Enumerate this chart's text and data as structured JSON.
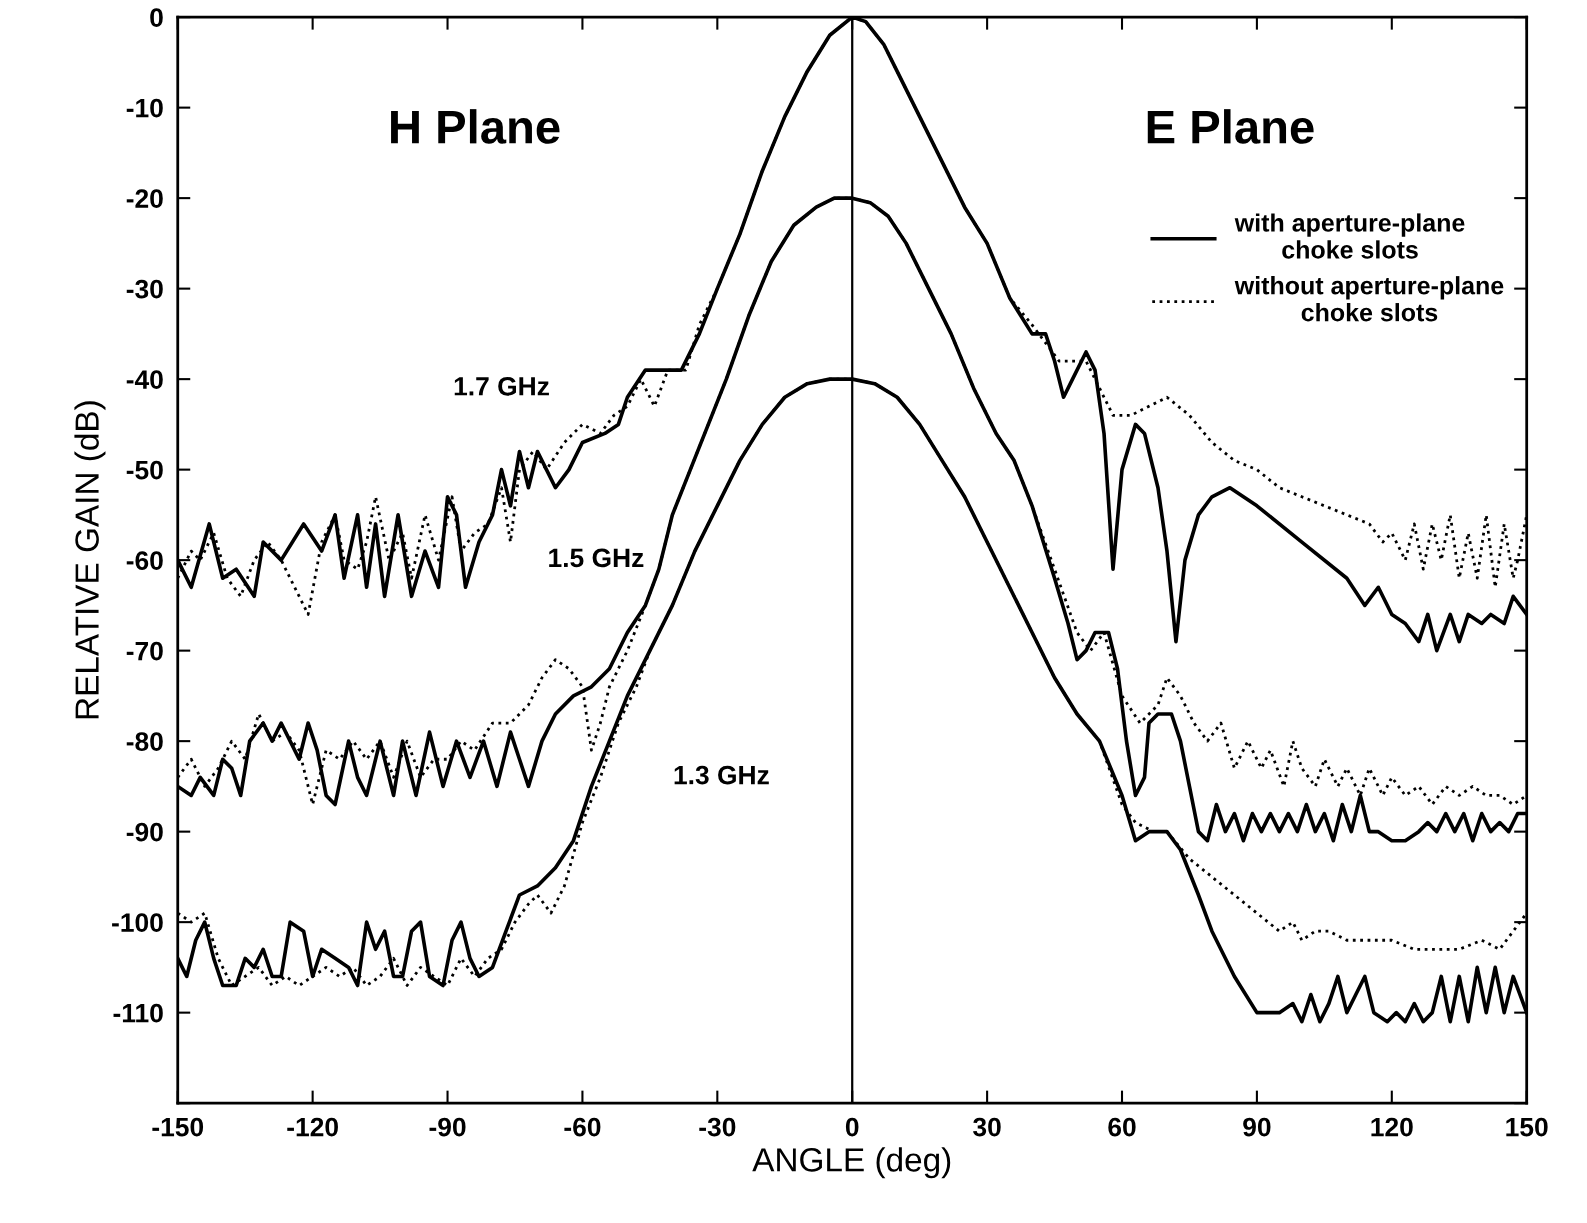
{
  "chart_data": {
    "type": "line",
    "xlabel": "ANGLE (deg)",
    "ylabel": "RELATIVE GAIN (dB)",
    "xlim": [
      -150,
      150
    ],
    "ylim": [
      -120,
      0
    ],
    "xticks": [
      -150,
      -120,
      -90,
      -60,
      -30,
      0,
      30,
      60,
      90,
      120,
      150
    ],
    "yticks": [
      0,
      -10,
      -20,
      -30,
      -40,
      -50,
      -60,
      -70,
      -80,
      -90,
      -100,
      -110,
      {
        "value": -120,
        "label": null
      }
    ],
    "grid": false,
    "legend": "top right",
    "marker": "none",
    "ref_lines": [
      {
        "axis": "x",
        "value": 0,
        "color": "#000000",
        "line_style": "solid"
      }
    ],
    "annotations": [
      "H Plane",
      "E Plane",
      "1.7 GHz",
      "1.5 GHz",
      "1.3 GHz"
    ],
    "series": [
      {
        "name": "with aperture-plane\nchoke slots",
        "color": "#000000",
        "line_style": "solid",
        "x": [
          -150,
          -147,
          -143,
          -140,
          -137,
          -133,
          -131,
          -127,
          -122,
          -118,
          -115,
          -113,
          -110,
          -108,
          -106,
          -104,
          -101,
          -98,
          -95,
          -92,
          -90,
          -88,
          -86,
          -83,
          -80,
          -78,
          -76,
          -74,
          -72,
          -70,
          -68,
          -66,
          -63,
          -60,
          -55,
          -52,
          -50,
          -46,
          -42,
          -38,
          -34,
          -30,
          -25,
          -20,
          -15,
          -10,
          -5,
          0,
          3,
          7,
          10,
          15,
          20,
          25,
          30,
          35,
          40,
          43,
          45,
          47,
          49,
          52,
          54,
          56,
          58,
          60,
          63,
          65,
          68,
          70,
          72,
          74,
          77,
          80,
          84,
          90,
          100,
          110,
          114,
          117,
          120,
          123,
          126,
          128,
          130,
          133,
          135,
          137,
          140,
          142,
          145,
          147,
          150
        ],
        "values": [
          -60,
          -63,
          -56,
          -62,
          -61,
          -64,
          -58,
          -60,
          -56,
          -59,
          -55,
          -62,
          -55,
          -63,
          -56,
          -64,
          -55,
          -64,
          -59,
          -63,
          -53,
          -55,
          -63,
          -58,
          -55,
          -50,
          -54,
          -48,
          -52,
          -48,
          -50,
          -52,
          -50,
          -47,
          -46,
          -45,
          -42,
          -39,
          -39,
          -39,
          -35,
          -30,
          -24,
          -17,
          -11,
          -6,
          -2,
          0,
          -0.5,
          -3,
          -6,
          -11,
          -16,
          -21,
          -25,
          -31,
          -35,
          -35,
          -38,
          -42,
          -40,
          -37,
          -39,
          -46,
          -61,
          -50,
          -45,
          -46,
          -52,
          -59,
          -69,
          -60,
          -55,
          -53,
          -52,
          -54,
          -58,
          -62,
          -65,
          -63,
          -66,
          -67,
          -69,
          -66,
          -70,
          -66,
          -69,
          -66,
          -67,
          -66,
          -67,
          -64,
          -66
        ]
      },
      {
        "name": "without aperture-plane\nchoke slots",
        "color": "#000000",
        "line_style": "dotted",
        "x": [
          -150,
          -147,
          -145,
          -142,
          -139,
          -136,
          -133,
          -130,
          -127,
          -124,
          -121,
          -118,
          -115,
          -113,
          -110,
          -108,
          -106,
          -103,
          -100,
          -98,
          -95,
          -92,
          -89,
          -87,
          -84,
          -81,
          -78,
          -76,
          -74,
          -71,
          -68,
          -64,
          -60,
          -56,
          -53,
          -50,
          -47,
          -44,
          -41,
          -37,
          -34,
          -30,
          -25,
          -20,
          -15,
          -10,
          -5,
          0,
          3,
          7,
          10,
          15,
          20,
          25,
          30,
          35,
          40,
          43,
          46,
          49,
          52,
          55,
          58,
          62,
          66,
          70,
          75,
          80,
          85,
          90,
          95,
          100,
          105,
          110,
          115,
          118,
          120,
          123,
          125,
          127,
          129,
          131,
          133,
          135,
          137,
          139,
          141,
          143,
          145,
          147,
          148,
          150
        ],
        "values": [
          -62,
          -59,
          -60,
          -57,
          -62,
          -64,
          -60,
          -58,
          -60,
          -63,
          -66,
          -58,
          -55,
          -60,
          -61,
          -58,
          -53,
          -60,
          -57,
          -62,
          -55,
          -60,
          -53,
          -59,
          -57,
          -56,
          -52,
          -58,
          -50,
          -48,
          -50,
          -47,
          -45,
          -46,
          -44,
          -43,
          -40,
          -43,
          -39,
          -39,
          -34,
          -30,
          -24,
          -17,
          -11,
          -6,
          -2,
          0,
          -0.5,
          -3,
          -6,
          -11,
          -16,
          -21,
          -25,
          -31,
          -34,
          -36,
          -38,
          -38,
          -38,
          -41,
          -44,
          -44,
          -43,
          -42,
          -44,
          -47,
          -49,
          -50,
          -52,
          -53,
          -54,
          -55,
          -56,
          -58,
          -57,
          -60,
          -56,
          -61,
          -56,
          -60,
          -55,
          -62,
          -57,
          -62,
          -55,
          -63,
          -56,
          -62,
          -60,
          -55
        ]
      },
      {
        "color": "#000000",
        "line_style": "solid",
        "x": [
          -150,
          -147,
          -145,
          -142,
          -140,
          -138,
          -136,
          -134,
          -131,
          -129,
          -127,
          -125,
          -123,
          -121,
          -119,
          -117,
          -115,
          -112,
          -110,
          -108,
          -105,
          -102,
          -100,
          -97,
          -94,
          -91,
          -88,
          -85,
          -82,
          -79,
          -76,
          -74,
          -72,
          -69,
          -66,
          -62,
          -58,
          -54,
          -50,
          -46,
          -43,
          -40,
          -36,
          -32,
          -28,
          -23,
          -18,
          -13,
          -8,
          -4,
          0,
          4,
          8,
          12,
          17,
          22,
          27,
          32,
          36,
          40,
          45,
          48,
          50,
          52,
          54,
          57,
          59,
          61,
          63,
          65,
          66,
          68,
          71,
          73,
          75,
          77,
          79,
          81,
          83,
          85,
          87,
          89,
          91,
          93,
          95,
          97,
          99,
          101,
          103,
          105,
          107,
          109,
          111,
          113,
          115,
          117,
          120,
          123,
          126,
          128,
          130,
          132,
          134,
          136,
          138,
          140,
          142,
          144,
          146,
          148,
          150
        ],
        "values": [
          -85,
          -86,
          -84,
          -86,
          -82,
          -83,
          -86,
          -80,
          -78,
          -80,
          -78,
          -80,
          -82,
          -78,
          -81,
          -86,
          -87,
          -80,
          -84,
          -86,
          -80,
          -86,
          -80,
          -86,
          -79,
          -85,
          -80,
          -84,
          -80,
          -85,
          -79,
          -82,
          -85,
          -80,
          -77,
          -75,
          -74,
          -72,
          -68,
          -65,
          -61,
          -55,
          -50,
          -45,
          -40,
          -33,
          -27,
          -23,
          -21,
          -20,
          -20,
          -20.5,
          -22,
          -25,
          -30,
          -35,
          -41,
          -46,
          -49,
          -54,
          -62,
          -67,
          -71,
          -70,
          -68,
          -68,
          -72,
          -80,
          -86,
          -84,
          -78,
          -77,
          -77,
          -80,
          -85,
          -90,
          -91,
          -87,
          -90,
          -88,
          -91,
          -88,
          -90,
          -88,
          -90,
          -88,
          -90,
          -87,
          -90,
          -88,
          -91,
          -87,
          -90,
          -86,
          -90,
          -90,
          -91,
          -91,
          -90,
          -89,
          -90,
          -88,
          -90,
          -88,
          -91,
          -88,
          -90,
          -89,
          -90,
          -88,
          -88
        ]
      },
      {
        "color": "#000000",
        "line_style": "dotted",
        "x": [
          -150,
          -147,
          -144,
          -141,
          -138,
          -135,
          -132,
          -129,
          -126,
          -123,
          -120,
          -117,
          -114,
          -111,
          -108,
          -105,
          -102,
          -99,
          -96,
          -93,
          -90,
          -87,
          -84,
          -80,
          -76,
          -72,
          -69,
          -66,
          -63,
          -60,
          -58,
          -56,
          -54,
          -50,
          -46,
          -43,
          -40,
          -36,
          -32,
          -28,
          -23,
          -18,
          -13,
          -8,
          -4,
          0,
          4,
          8,
          12,
          17,
          22,
          27,
          32,
          36,
          40,
          45,
          50,
          53,
          56,
          60,
          64,
          68,
          70,
          73,
          76,
          79,
          82,
          85,
          88,
          91,
          93,
          96,
          98,
          100,
          103,
          105,
          108,
          110,
          113,
          115,
          118,
          120,
          123,
          126,
          129,
          132,
          135,
          138,
          141,
          144,
          147,
          150
        ],
        "values": [
          -84,
          -82,
          -85,
          -83,
          -80,
          -82,
          -77,
          -80,
          -79,
          -81,
          -87,
          -81,
          -82,
          -80,
          -82,
          -80,
          -84,
          -80,
          -84,
          -82,
          -82,
          -80,
          -81,
          -78,
          -78,
          -76,
          -73,
          -71,
          -72,
          -74,
          -81,
          -78,
          -74,
          -70,
          -65,
          -61,
          -55,
          -50,
          -45,
          -40,
          -33,
          -27,
          -23,
          -21,
          -20,
          -20,
          -20.5,
          -22,
          -25,
          -30,
          -35,
          -41,
          -46,
          -49,
          -54,
          -61,
          -68,
          -70,
          -68,
          -75,
          -78,
          -76,
          -73,
          -75,
          -78,
          -80,
          -78,
          -83,
          -80,
          -83,
          -81,
          -85,
          -80,
          -83,
          -85,
          -82,
          -85,
          -83,
          -86,
          -83,
          -86,
          -84,
          -86,
          -85,
          -87,
          -85,
          -86,
          -85,
          -86,
          -86,
          -87,
          -86
        ]
      },
      {
        "color": "#000000",
        "line_style": "solid",
        "x": [
          -150,
          -148,
          -146,
          -144,
          -142,
          -140,
          -137,
          -135,
          -133,
          -131,
          -129,
          -127,
          -125,
          -122,
          -120,
          -118,
          -115,
          -112,
          -110,
          -108,
          -106,
          -104,
          -102,
          -100,
          -98,
          -96,
          -94,
          -91,
          -89,
          -87,
          -85,
          -83,
          -80,
          -77,
          -74,
          -70,
          -66,
          -62,
          -58,
          -54,
          -50,
          -45,
          -40,
          -35,
          -30,
          -25,
          -20,
          -15,
          -10,
          -5,
          0,
          5,
          10,
          15,
          20,
          25,
          30,
          35,
          40,
          45,
          50,
          55,
          60,
          63,
          66,
          70,
          73,
          77,
          80,
          85,
          90,
          95,
          98,
          100,
          102,
          104,
          106,
          108,
          110,
          112,
          114,
          116,
          119,
          121,
          123,
          125,
          127,
          129,
          131,
          133,
          135,
          137,
          139,
          141,
          143,
          145,
          147,
          150
        ],
        "values": [
          -104,
          -106,
          -102,
          -100,
          -104,
          -107,
          -107,
          -104,
          -105,
          -103,
          -106,
          -106,
          -100,
          -101,
          -106,
          -103,
          -104,
          -105,
          -107,
          -100,
          -103,
          -101,
          -106,
          -106,
          -101,
          -100,
          -106,
          -107,
          -102,
          -100,
          -104,
          -106,
          -105,
          -101,
          -97,
          -96,
          -94,
          -91,
          -85,
          -80,
          -75,
          -70,
          -65,
          -59,
          -54,
          -49,
          -45,
          -42,
          -40.5,
          -40,
          -40,
          -40.5,
          -42,
          -45,
          -49,
          -53,
          -58,
          -63,
          -68,
          -73,
          -77,
          -80,
          -86,
          -91,
          -90,
          -90,
          -92,
          -97,
          -101,
          -106,
          -110,
          -110,
          -109,
          -111,
          -108,
          -111,
          -109,
          -106,
          -110,
          -108,
          -106,
          -110,
          -111,
          -110,
          -111,
          -109,
          -111,
          -110,
          -106,
          -111,
          -106,
          -111,
          -105,
          -110,
          -105,
          -110,
          -106,
          -110
        ]
      },
      {
        "color": "#000000",
        "line_style": "dotted",
        "x": [
          -150,
          -147,
          -144,
          -141,
          -138,
          -135,
          -132,
          -129,
          -126,
          -123,
          -120,
          -117,
          -114,
          -111,
          -108,
          -105,
          -102,
          -99,
          -96,
          -93,
          -90,
          -87,
          -84,
          -81,
          -78,
          -75,
          -72,
          -70,
          -67,
          -64,
          -60,
          -56,
          -52,
          -48,
          -45,
          -40,
          -35,
          -30,
          -25,
          -20,
          -15,
          -10,
          -5,
          0,
          5,
          10,
          15,
          20,
          25,
          30,
          35,
          40,
          45,
          50,
          55,
          60,
          63,
          67,
          70,
          75,
          80,
          85,
          90,
          95,
          98,
          100,
          103,
          106,
          110,
          115,
          120,
          125,
          130,
          135,
          140,
          144,
          147,
          150
        ],
        "values": [
          -99,
          -100,
          -99,
          -104,
          -107,
          -106,
          -105,
          -107,
          -106,
          -107,
          -106,
          -105,
          -106,
          -105,
          -107,
          -106,
          -104,
          -107,
          -105,
          -106,
          -107,
          -104,
          -106,
          -104,
          -103,
          -100,
          -98,
          -97,
          -99,
          -96,
          -89,
          -84,
          -78,
          -74,
          -70,
          -65,
          -59,
          -54,
          -49,
          -45,
          -42,
          -40.5,
          -40,
          -40,
          -40.5,
          -42,
          -45,
          -49,
          -53,
          -58,
          -63,
          -68,
          -73,
          -77,
          -80,
          -87,
          -89,
          -90,
          -90,
          -93,
          -95,
          -97,
          -99,
          -101,
          -100,
          -102,
          -101,
          -101,
          -102,
          -102,
          -102,
          -103,
          -103,
          -103,
          -102,
          -103,
          -101,
          -99
        ]
      }
    ]
  }
}
